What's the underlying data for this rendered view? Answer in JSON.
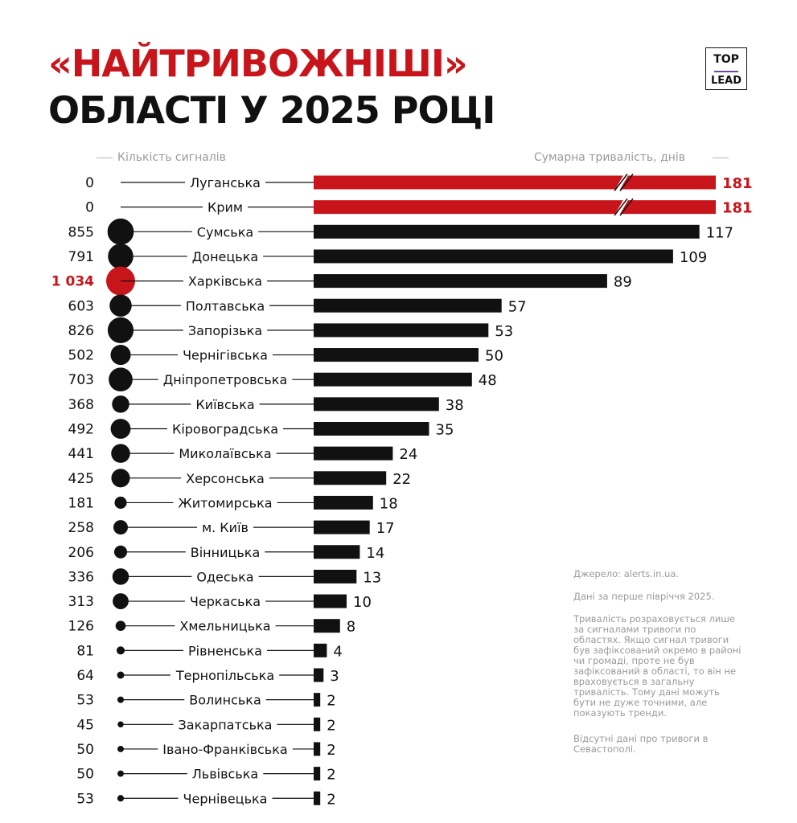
{
  "title": {
    "line1": "«НАЙТРИВОЖНІШІ»",
    "line2": "ОБЛАСТІ У 2025 РОЦІ"
  },
  "logo": {
    "top": "TOP",
    "bottom": "LEAD"
  },
  "headers": {
    "left": "Кількість сигналів",
    "right": "Сумарна тривалість, днів"
  },
  "notes": {
    "source": "Джерело: alerts.in.ua.",
    "period": "Дані за перше півріччя 2025.",
    "method": "Тривалість розраховується лише за сигналами тривоги по областях. Якщо сигнал тривоги був зафіксований окремо в районі чи громаді, проте не був зафіксований в області, то він не враховується в загальну тривалість. Тому дані можуть бути не дуже точними, але показують тренди.",
    "missing": "Відсутні дані про тривоги в Севастополі."
  },
  "colors": {
    "accent": "#c8151b",
    "bar": "#111111",
    "muted": "#9a9a9a"
  },
  "chart_data": {
    "type": "bar",
    "orientation": "horizontal",
    "categories": [
      "Луганська",
      "Крим",
      "Сумська",
      "Донецька",
      "Харківська",
      "Полтавська",
      "Запорізька",
      "Чернігівська",
      "Дніпропетровська",
      "Київська",
      "Кіровоградська",
      "Миколаївська",
      "Херсонська",
      "Житомирська",
      "м. Київ",
      "Вінницька",
      "Одеська",
      "Черкаська",
      "Хмельницька",
      "Рівненська",
      "Тернопільська",
      "Волинська",
      "Закарпатська",
      "Івано-Франківська",
      "Львівська",
      "Чернівецька"
    ],
    "signals_labels": [
      "0",
      "0",
      "855",
      "791",
      "1 034",
      "603",
      "826",
      "502",
      "703",
      "368",
      "492",
      "441",
      "425",
      "181",
      "258",
      "206",
      "336",
      "313",
      "126",
      "81",
      "64",
      "53",
      "45",
      "50",
      "50",
      "53"
    ],
    "signals": [
      0,
      0,
      855,
      791,
      1034,
      603,
      826,
      502,
      703,
      368,
      492,
      441,
      425,
      181,
      258,
      206,
      336,
      313,
      126,
      81,
      64,
      53,
      45,
      50,
      50,
      53
    ],
    "series": [
      {
        "name": "Сумарна тривалість, днів",
        "values": [
          181,
          181,
          117,
          109,
          89,
          57,
          53,
          50,
          48,
          38,
          35,
          24,
          22,
          18,
          17,
          14,
          13,
          10,
          8,
          4,
          3,
          2,
          2,
          2,
          2,
          2
        ]
      },
      {
        "name": "Кількість сигналів",
        "values": [
          0,
          0,
          855,
          791,
          1034,
          603,
          826,
          502,
          703,
          368,
          492,
          441,
          425,
          181,
          258,
          206,
          336,
          313,
          126,
          81,
          64,
          53,
          45,
          50,
          50,
          53
        ]
      }
    ],
    "highlight_duration": [
      true,
      true,
      false,
      false,
      false,
      false,
      false,
      false,
      false,
      false,
      false,
      false,
      false,
      false,
      false,
      false,
      false,
      false,
      false,
      false,
      false,
      false,
      false,
      false,
      false,
      false
    ],
    "highlight_signals": [
      false,
      false,
      false,
      false,
      true,
      false,
      false,
      false,
      false,
      false,
      false,
      false,
      false,
      false,
      false,
      false,
      false,
      false,
      false,
      false,
      false,
      false,
      false,
      false,
      false,
      false
    ],
    "axis_break_on": [
      "Луганська",
      "Крим"
    ]
  }
}
